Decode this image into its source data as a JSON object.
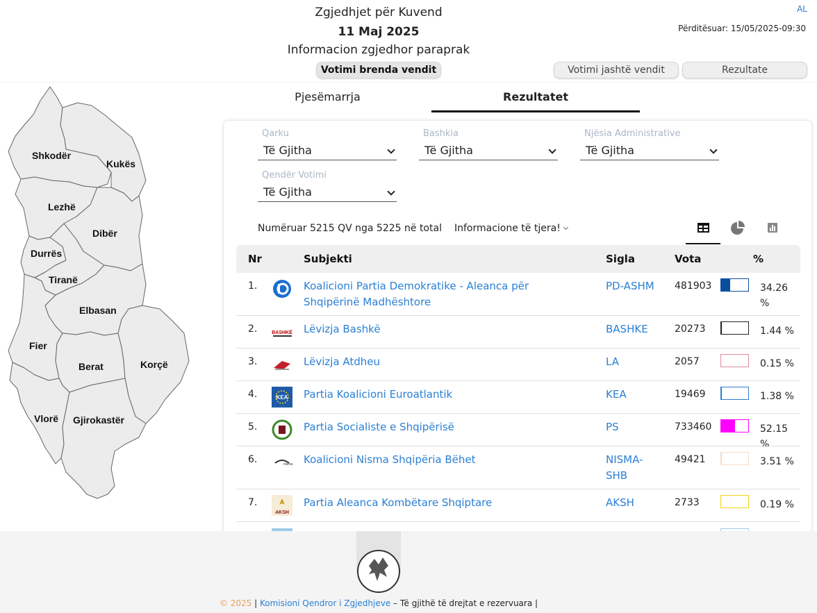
{
  "header": {
    "title": "Zgjedhjet për Kuvend",
    "date": "11 Maj 2025",
    "subtitle": "Informacion zgjedhor paraprak",
    "lang": "AL",
    "updated": "Përditësuar: 15/05/2025-09:30",
    "nav": {
      "domestic": "Votimi brenda vendit",
      "abroad": "Votimi jashtë vendit",
      "results": "Rezultate"
    }
  },
  "map": {
    "regions": [
      "Shkodër",
      "Kukës",
      "Lezhë",
      "Dibër",
      "Durrës",
      "Tiranë",
      "Elbasan",
      "Fier",
      "Berat",
      "Korçë",
      "Vlorë",
      "Gjirokastër"
    ]
  },
  "tabs": {
    "participation": "Pjesëmarrja",
    "results": "Rezultatet"
  },
  "filters": {
    "qarku": {
      "label": "Qarku",
      "value": "Të Gjitha"
    },
    "bashkia": {
      "label": "Bashkia",
      "value": "Të Gjitha"
    },
    "njesia": {
      "label": "Njësia Administrative",
      "value": "Të Gjitha"
    },
    "qender": {
      "label": "Qendër Votimi",
      "value": "Të Gjitha"
    }
  },
  "summary": {
    "counted": "Numëruar 5215 QV nga 5225 në total",
    "more_info": "Informacione të tjera!"
  },
  "view_icons": [
    "table-icon",
    "pie-chart-icon",
    "bar-chart-icon"
  ],
  "table": {
    "headers": {
      "nr": "Nr",
      "subject": "Subjekti",
      "sigla": "Sigla",
      "votes": "Vota",
      "percent": "%"
    },
    "rows": [
      {
        "nr": "1.",
        "name": "Koalicioni Partia Demokratike - Aleanca për Shqipërinë Madhështore",
        "sigla": "PD-ASHM",
        "votes": "481903",
        "percent": "34.26 %",
        "share": 34.26,
        "color": "#0a4ea0",
        "logo": "pd-logo-icon"
      },
      {
        "nr": "2.",
        "name": "Lëvizja Bashkë",
        "sigla": "BASHKE",
        "votes": "20273",
        "percent": "1.44 %",
        "share": 1.44,
        "color": "#222222",
        "logo": "bashke-logo-icon"
      },
      {
        "nr": "3.",
        "name": "Lëvizja Atdheu",
        "sigla": "LA",
        "votes": "2057",
        "percent": "0.15 %",
        "share": 0.15,
        "color": "#e08a9a",
        "logo": "la-logo-icon"
      },
      {
        "nr": "4.",
        "name": "Partia Koalicioni Euroatlantik",
        "sigla": "KEA",
        "votes": "19469",
        "percent": "1.38 %",
        "share": 1.38,
        "color": "#2a7fd4",
        "logo": "kea-logo-icon"
      },
      {
        "nr": "5.",
        "name": "Partia Socialiste e Shqipërisë",
        "sigla": "PS",
        "votes": "733460",
        "percent": "52.15 %",
        "share": 52.15,
        "color": "#ff00ff",
        "logo": "ps-logo-icon"
      },
      {
        "nr": "6.",
        "name": "Koalicioni Nisma Shqipëria Bëhet",
        "sigla": "NISMA-SHB",
        "votes": "49421",
        "percent": "3.51 %",
        "share": 3.51,
        "color": "#f6dcc8",
        "logo": "nisma-logo-icon"
      },
      {
        "nr": "7.",
        "name": "Partia Aleanca Kombëtare Shqiptare",
        "sigla": "AKSH",
        "votes": "2733",
        "percent": "0.19 %",
        "share": 0.19,
        "color": "#f2d21c",
        "logo": "aksh-logo-icon"
      }
    ]
  },
  "footer": {
    "year": "© 2025",
    "sep1": " | ",
    "org": "Komisioni Qendror i Zgjedhjeve",
    "rest": " – Të gjithë të drejtat e rezervuara |"
  }
}
